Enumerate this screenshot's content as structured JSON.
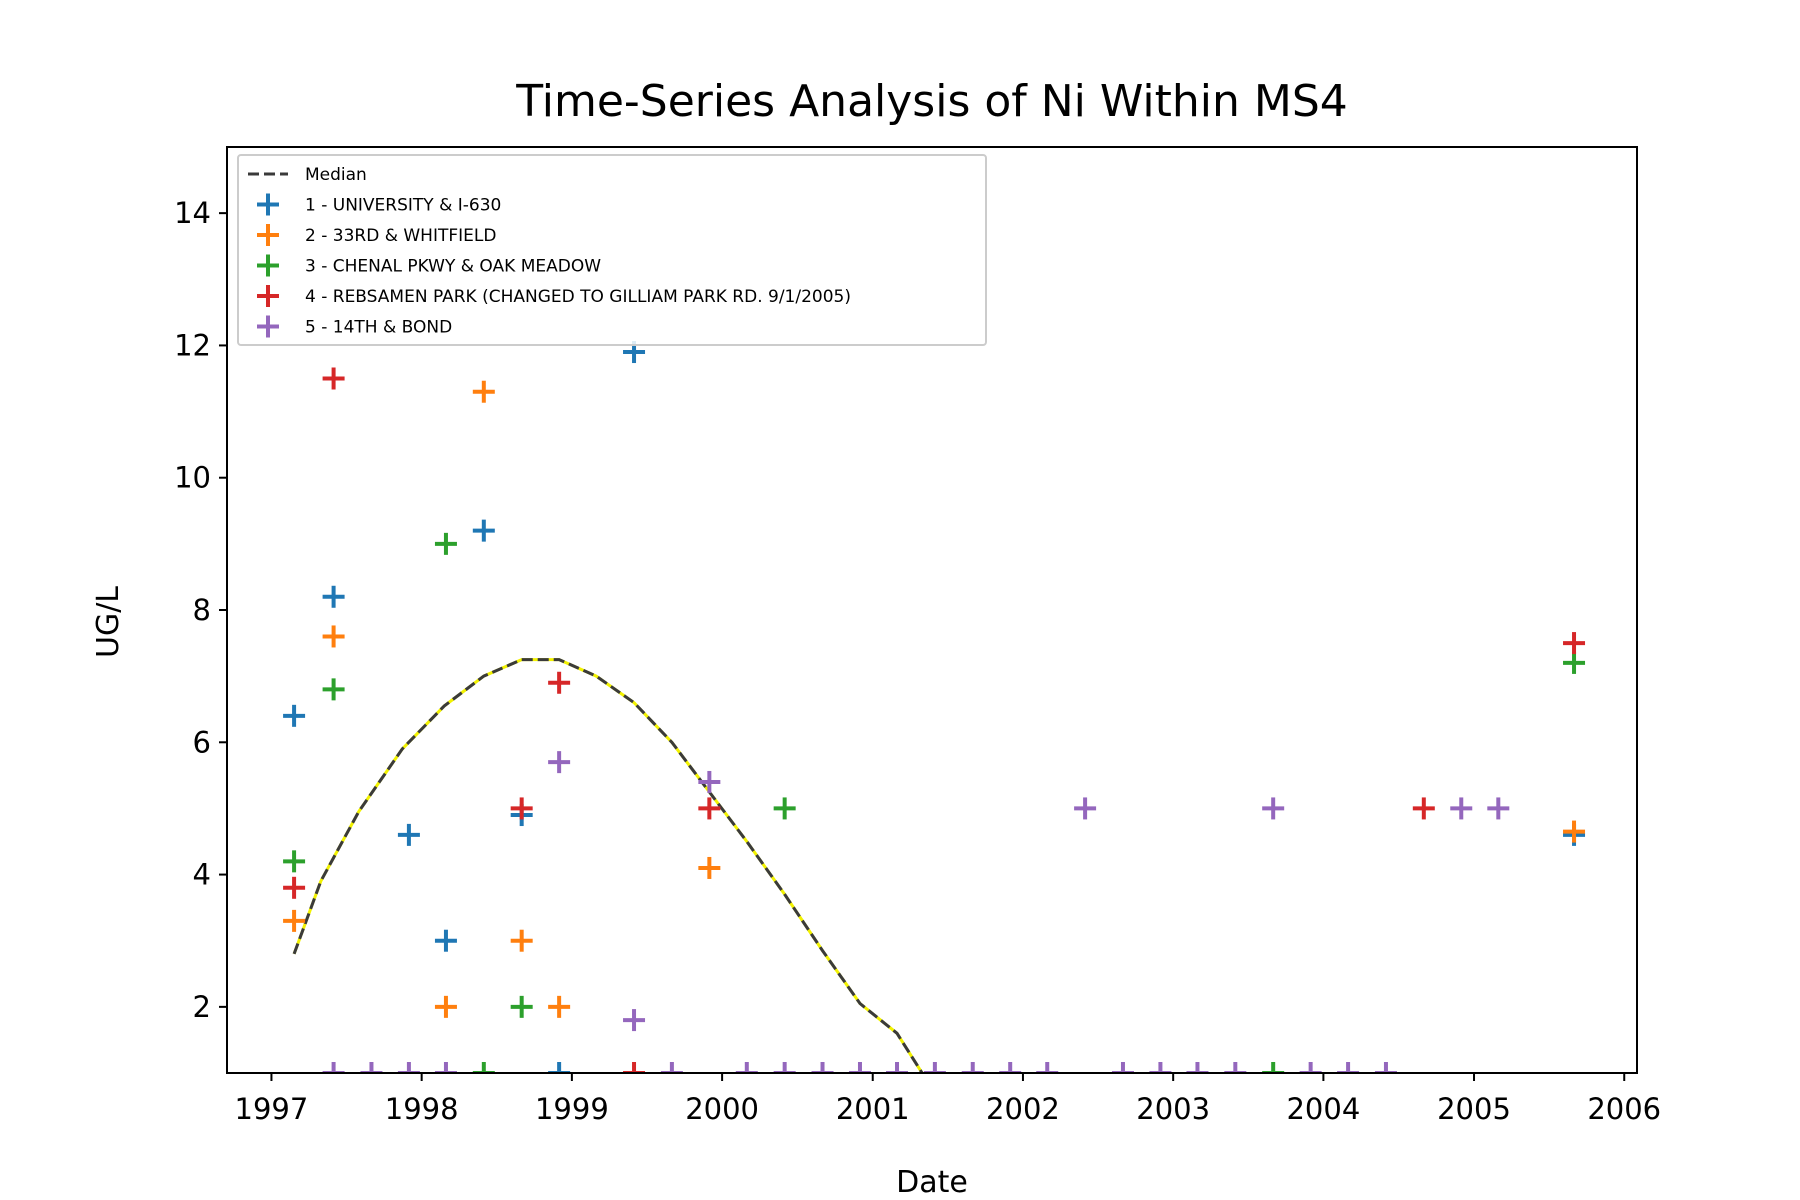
{
  "chart_data": {
    "type": "scatter",
    "title": "Time-Series Analysis of Ni Within MS4",
    "xlabel": "Date",
    "ylabel": "UG/L",
    "xlim": [
      "1996-09-15",
      "2006-02-01"
    ],
    "ylim": [
      1.0,
      15.0
    ],
    "x_ticks": [
      "1997",
      "1998",
      "1999",
      "2000",
      "2001",
      "2002",
      "2003",
      "2004",
      "2005",
      "2006"
    ],
    "y_ticks": [
      2,
      4,
      6,
      8,
      10,
      12,
      14
    ],
    "grid": false,
    "legend_position": "top-left",
    "median": {
      "name": "Median",
      "color": "#3a3a3a",
      "highlight_color": "#f2f200",
      "points": [
        [
          "1997-02-25",
          2.8
        ],
        [
          "1997-05-01",
          3.9
        ],
        [
          "1997-08-01",
          4.95
        ],
        [
          "1997-11-15",
          5.9
        ],
        [
          "1998-02-25",
          6.55
        ],
        [
          "1998-06-01",
          7.0
        ],
        [
          "1998-09-01",
          7.25
        ],
        [
          "1998-12-01",
          7.25
        ],
        [
          "1999-03-01",
          7.0
        ],
        [
          "1999-06-01",
          6.6
        ],
        [
          "1999-09-01",
          6.0
        ],
        [
          "1999-12-01",
          5.25
        ],
        [
          "2000-03-01",
          4.5
        ],
        [
          "2000-06-01",
          3.7
        ],
        [
          "2000-09-01",
          2.85
        ],
        [
          "2000-12-01",
          2.05
        ],
        [
          "2001-03-01",
          1.6
        ],
        [
          "2001-05-01",
          1.0
        ]
      ]
    },
    "series": [
      {
        "name": "1 - UNIVERSITY & I-630",
        "color": "#1f77b4",
        "points": [
          [
            "1997-02-25",
            6.4
          ],
          [
            "1997-06-01",
            8.2
          ],
          [
            "1997-12-01",
            4.6
          ],
          [
            "1998-03-01",
            3.0
          ],
          [
            "1998-06-01",
            9.2
          ],
          [
            "1998-09-01",
            4.9
          ],
          [
            "1998-12-01",
            1.0
          ],
          [
            "1999-06-01",
            11.9
          ],
          [
            "2005-09-01",
            4.6
          ]
        ]
      },
      {
        "name": "2 - 33RD & WHITFIELD",
        "color": "#ff7f0e",
        "points": [
          [
            "1997-02-25",
            3.3
          ],
          [
            "1997-06-01",
            7.6
          ],
          [
            "1998-03-01",
            2.0
          ],
          [
            "1998-06-01",
            11.3
          ],
          [
            "1998-09-01",
            3.0
          ],
          [
            "1998-12-01",
            2.0
          ],
          [
            "1999-12-01",
            4.1
          ],
          [
            "2005-09-01",
            4.65
          ]
        ]
      },
      {
        "name": "3 - CHENAL PKWY & OAK MEADOW",
        "color": "#2ca02c",
        "points": [
          [
            "1997-02-25",
            4.2
          ],
          [
            "1997-06-01",
            6.8
          ],
          [
            "1998-03-01",
            9.0
          ],
          [
            "1998-06-01",
            1.0
          ],
          [
            "1998-09-01",
            2.0
          ],
          [
            "2000-06-01",
            5.0
          ],
          [
            "2003-09-01",
            1.0
          ],
          [
            "2005-09-01",
            7.2
          ]
        ]
      },
      {
        "name": "4 - REBSAMEN PARK (CHANGED TO GILLIAM PARK RD. 9/1/2005)",
        "color": "#d62728",
        "points": [
          [
            "1997-02-25",
            3.8
          ],
          [
            "1997-06-01",
            11.5
          ],
          [
            "1998-09-01",
            5.0
          ],
          [
            "1998-12-01",
            6.9
          ],
          [
            "1999-06-01",
            1.0
          ],
          [
            "1999-12-01",
            5.0
          ],
          [
            "2004-09-01",
            5.0
          ],
          [
            "2005-09-01",
            7.5
          ]
        ]
      },
      {
        "name": "5 - 14TH & BOND",
        "color": "#9467bd",
        "points": [
          [
            "1997-06-01",
            1.0
          ],
          [
            "1997-09-01",
            1.0
          ],
          [
            "1997-12-01",
            1.0
          ],
          [
            "1998-03-01",
            1.0
          ],
          [
            "1998-12-01",
            5.7
          ],
          [
            "1999-06-01",
            1.8
          ],
          [
            "1999-09-01",
            1.0
          ],
          [
            "1999-12-01",
            5.4
          ],
          [
            "2000-03-01",
            1.0
          ],
          [
            "2000-06-01",
            1.0
          ],
          [
            "2000-09-01",
            1.0
          ],
          [
            "2000-12-01",
            1.0
          ],
          [
            "2001-03-01",
            1.0
          ],
          [
            "2001-06-01",
            1.0
          ],
          [
            "2001-09-01",
            1.0
          ],
          [
            "2001-12-01",
            1.0
          ],
          [
            "2002-03-01",
            1.0
          ],
          [
            "2002-06-01",
            5.0
          ],
          [
            "2002-09-01",
            1.0
          ],
          [
            "2002-12-01",
            1.0
          ],
          [
            "2003-03-01",
            1.0
          ],
          [
            "2003-06-01",
            1.0
          ],
          [
            "2003-09-01",
            5.0
          ],
          [
            "2003-12-01",
            1.0
          ],
          [
            "2004-03-01",
            1.0
          ],
          [
            "2004-06-01",
            1.0
          ],
          [
            "2004-12-01",
            5.0
          ],
          [
            "2005-03-01",
            5.0
          ]
        ]
      }
    ]
  }
}
